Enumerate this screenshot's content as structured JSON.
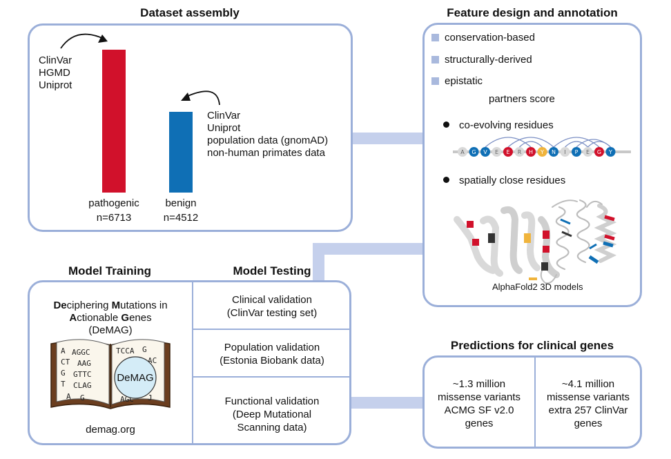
{
  "dataset": {
    "title": "Dataset assembly",
    "pathogenic_sources": [
      "ClinVar",
      "HGMD",
      "Uniprot"
    ],
    "benign_sources": [
      "ClinVar",
      "Uniprot",
      "population data (gnomAD)",
      "non-human primates data"
    ],
    "pathogenic_label": "pathogenic",
    "pathogenic_count": "n=6713",
    "benign_label": "benign",
    "benign_count": "n=4512",
    "pathogenic_color": "#d1112b",
    "benign_color": "#0f6fb5"
  },
  "features": {
    "title": "Feature design and annotation",
    "items": [
      "conservation-based",
      "structurally-derived",
      "epistatic"
    ],
    "partners_label": "partners score",
    "bullets": [
      "co-evolving residues",
      "spatially close residues"
    ],
    "sequence_letters": [
      "A",
      "G",
      "V",
      "E",
      "E",
      "R",
      "H",
      "Y",
      "N",
      "I",
      "P",
      "E",
      "G",
      "Y"
    ],
    "structure_caption": "AlphaFold2 3D models"
  },
  "training": {
    "title": "Model Training",
    "name_line1_parts": [
      "De",
      "ciphering ",
      "M",
      "utations in"
    ],
    "name_line2_parts": [
      "A",
      "ctionable ",
      "G",
      "enes"
    ],
    "acronym": "(DeMAG)",
    "book_label": "DeMAG",
    "website": "demag.org"
  },
  "testing": {
    "title": "Model Testing",
    "validations": [
      {
        "line1": "Clinical validation",
        "line2": "(ClinVar testing set)",
        "line3": ""
      },
      {
        "line1": "Population validation",
        "line2": "(Estonia Biobank data)",
        "line3": ""
      },
      {
        "line1": "Functional validation",
        "line2": "(Deep Mutational",
        "line3": "Scanning data)"
      }
    ]
  },
  "predictions": {
    "title": "Predictions for clinical genes",
    "left": [
      "~1.3 million",
      "missense variants",
      "ACMG SF v2.0",
      "genes"
    ],
    "right": [
      "~4.1 million",
      "missense variants",
      "extra 257 ClinVar",
      "genes"
    ]
  }
}
